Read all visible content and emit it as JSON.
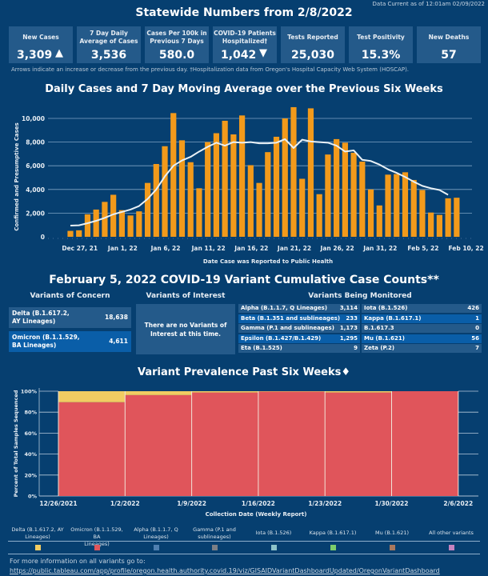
{
  "header": {
    "data_current": "Data Current as of 12:01am 02/09/2022",
    "title": "Statewide Numbers from 2/8/2022",
    "stats": [
      {
        "label": "New Cases",
        "value": "3,309",
        "arrow": "up"
      },
      {
        "label": "7 Day Daily Average of Cases",
        "value": "3,536"
      },
      {
        "label": "Cases Per 100k in Previous 7 Days",
        "value": "580.0"
      },
      {
        "label": "COVID-19 Patients Hospitalized†",
        "value": "1,042",
        "arrow": "down"
      },
      {
        "label": "Tests Reported",
        "value": "25,030"
      },
      {
        "label": "Test Positivity",
        "value": "15.3%"
      },
      {
        "label": "New Deaths",
        "value": "57"
      }
    ],
    "arrow_up_glyph": "▲",
    "arrow_down_glyph": "▼",
    "footnote": "Arrows indicate an increase or decrease from the previous day. †Hospitalization data from Oregon's Hospital Capacity Web System (HOSCAP)."
  },
  "variant_counts": {
    "title": "February 5, 2022 COVID-19 Variant Cumulative Case Counts**",
    "concern_heading": "Variants of Concern",
    "interest_heading": "Variants of Interest",
    "monitored_heading": "Variants Being Monitored",
    "concern": [
      {
        "name_line1": "Delta (B.1.617.2,",
        "name_line2": "AY Lineages)",
        "count": "18,638"
      },
      {
        "name_line1": "Omicron (B.1.1.529,",
        "name_line2": "BA Lineages)",
        "count": "4,611"
      }
    ],
    "interest_message_line1": "There are no Variants of",
    "interest_message_line2": "Interest at this time.",
    "monitored_left": [
      {
        "name": "Alpha (B.1.1.7, Q Lineages)",
        "count": "3,114"
      },
      {
        "name": "Beta (B.1.351 and sublineages)",
        "count": "233"
      },
      {
        "name": "Gamma (P.1  and sublineages)",
        "count": "1,173"
      },
      {
        "name": "Epsilon (B.1.427/B.1.429)",
        "count": "1,295"
      },
      {
        "name": "Eta (B.1.525)",
        "count": "9"
      }
    ],
    "monitored_right": [
      {
        "name": "Iota (B.1.526)",
        "count": "426"
      },
      {
        "name": "Kappa (B.1.617.1)",
        "count": "1"
      },
      {
        "name": "B.1.617.3",
        "count": "0"
      },
      {
        "name": "Mu (B.1.621)",
        "count": "56"
      },
      {
        "name": "Zeta (P.2)",
        "count": "7"
      }
    ]
  },
  "legend": [
    {
      "line1": "Delta (B.1.617.2, AY",
      "line2": "Lineages)",
      "color": "#f1cc62"
    },
    {
      "line1": "Omicron (B.1.1.529, BA",
      "line2": "Lineages)",
      "color": "#e0555b"
    },
    {
      "line1": "Alpha (B.1.1.7, Q",
      "line2": "Lineages)",
      "color": "#4f7fb0"
    },
    {
      "line1": "Gamma (P.1 and",
      "line2": "sublineages)",
      "color": "#7b7f86"
    },
    {
      "line1": "Iota (B.1.526)",
      "line2": "",
      "color": "#8ec3c9"
    },
    {
      "line1": "Kappa (B.1.617.1)",
      "line2": "",
      "color": "#7dcd6a"
    },
    {
      "line1": "Mu (B.1.621)",
      "line2": "",
      "color": "#a8785e"
    },
    {
      "line1": "All other variants",
      "line2": "",
      "color": "#c583c0"
    }
  ],
  "footer": {
    "more_info": "For more information on all variants go to:",
    "link": "https://public.tableau.com/app/profile/oregon.health.authority.covid.19/viz/GISAIDVariantDashboardUpdated/OregonVariantDashboard"
  },
  "colors": {
    "background": "#063f70",
    "card": "#245a8a",
    "bar": "#f29a1b",
    "avg_line": "#e9f1f6",
    "row_alt_dark": "#245a8a",
    "row_alt_bright": "#0a5ea8"
  },
  "chart_data": [
    {
      "type": "bar",
      "title": "Daily Cases and 7 Day Moving Average over the Previous Six Weeks",
      "xlabel": "Date Case was Reported to Public Health",
      "ylabel": "Confirmed and Presumptive Cases",
      "ylim": [
        0,
        11000
      ],
      "yticks": [
        0,
        2000,
        4000,
        6000,
        8000,
        10000
      ],
      "ytick_labels": [
        "0",
        "2,000",
        "4,000",
        "6,000",
        "8,000",
        "10,000"
      ],
      "xtick_labels": [
        "Dec 27, 21",
        "Jan 1, 22",
        "Jan 6, 22",
        "Jan 11, 22",
        "Jan 16, 22",
        "Jan 21, 22",
        "Jan 26, 22",
        "Jan 31, 22",
        "Feb 5, 22",
        "Feb 10, 22"
      ],
      "xtick_day_index": [
        1,
        6,
        11,
        16,
        21,
        26,
        31,
        36,
        41,
        46
      ],
      "first_date": "Dec 26, 21",
      "grid": true,
      "series": [
        {
          "name": "Daily Cases",
          "type": "bar",
          "values": [
            500,
            550,
            1900,
            2300,
            2950,
            3550,
            2250,
            1800,
            2150,
            4550,
            6150,
            7650,
            10450,
            8150,
            6300,
            4100,
            8000,
            8750,
            9800,
            8650,
            10250,
            6050,
            4550,
            7150,
            8450,
            10000,
            10950,
            4900,
            10850,
            3600,
            6950,
            8250,
            7950,
            7100,
            6350,
            4000,
            2650,
            5250,
            5300,
            5450,
            4800,
            3950,
            2050,
            1850,
            3250,
            3300
          ]
        },
        {
          "name": "7 Day Moving Average",
          "type": "line",
          "values": [
            950,
            970,
            1150,
            1350,
            1600,
            1900,
            2100,
            2300,
            2600,
            3200,
            4000,
            5100,
            6000,
            6450,
            6750,
            7200,
            7600,
            7950,
            7700,
            8000,
            7950,
            8000,
            7900,
            7900,
            7950,
            8250,
            7500,
            8200,
            8050,
            8000,
            7950,
            7700,
            7200,
            7300,
            6500,
            6400,
            6100,
            5700,
            5400,
            5050,
            4650,
            4300,
            4100,
            3950,
            3550
          ]
        }
      ]
    },
    {
      "type": "bar",
      "stacked": true,
      "title": "Variant Prevalence Past Six Weeks♦",
      "xlabel": "Collection Date (Weekly Report)",
      "ylabel": "Percent of Total Samples Sequenced",
      "ylim": [
        0,
        100
      ],
      "yticks": [
        0,
        20,
        40,
        60,
        80,
        100
      ],
      "ytick_labels": [
        "0%",
        "20%",
        "40%",
        "60%",
        "80%",
        "100%"
      ],
      "categories": [
        "12/26/2021",
        "1/2/2022",
        "1/9/2022",
        "1/16/2022",
        "1/23/2022",
        "1/30/2022"
      ],
      "xtick_labels": [
        "12/26/2021",
        "1/2/2022",
        "1/9/2022",
        "1/16/2022",
        "1/23/2022",
        "1/30/2022",
        "2/6/2022"
      ],
      "series": [
        {
          "name": "Omicron (B.1.1.529, BA Lineages)",
          "color": "#e0555b",
          "values": [
            89.5,
            96.3,
            98.8,
            99.6,
            98.8,
            100
          ]
        },
        {
          "name": "Delta (B.1.617.2, AY Lineages)",
          "color": "#f1cc62",
          "values": [
            10.5,
            3.7,
            1.2,
            0.4,
            1.2,
            0
          ]
        }
      ]
    }
  ]
}
